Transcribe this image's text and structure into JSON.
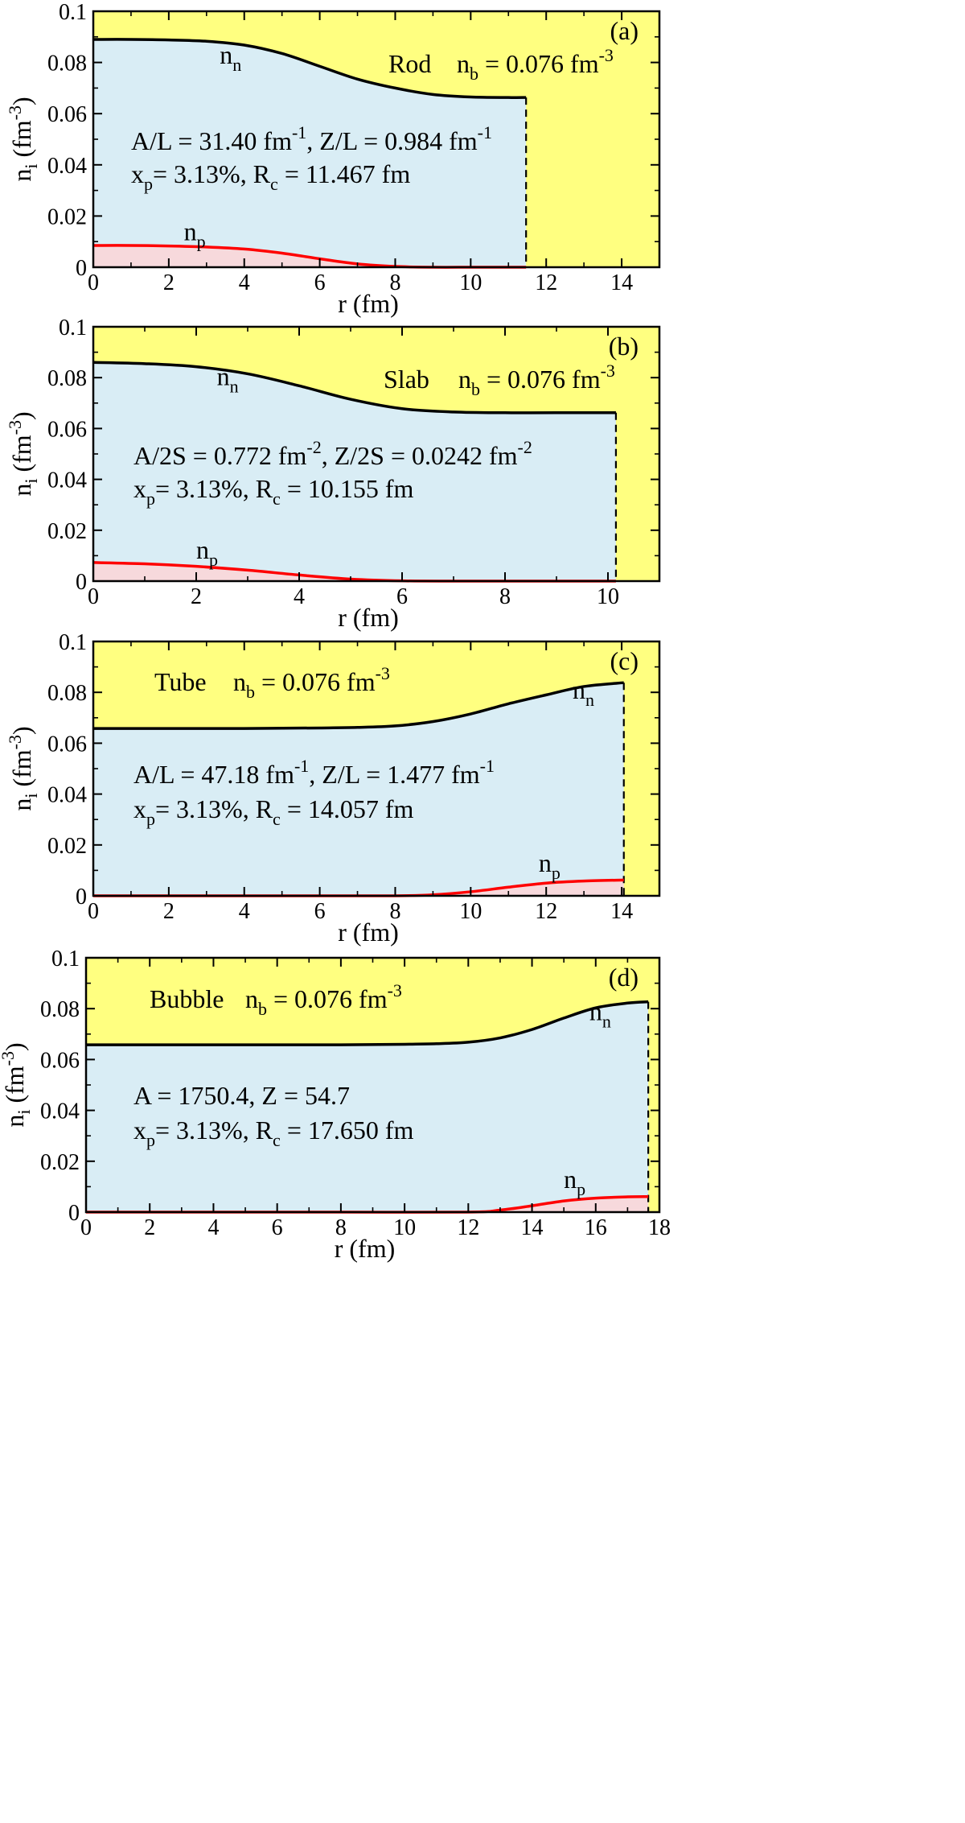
{
  "chart_data": [
    {
      "type": "area",
      "panel_label": "(a)",
      "shape": "Rod",
      "nb_text": "n",
      "nb_sub": "b",
      "nb_value": " = 0.076 fm",
      "nb_sup": "-3",
      "xlabel": "r (fm)",
      "ylabel_main": "n",
      "ylabel_sub": "i",
      "ylabel_unit": " (fm",
      "ylabel_sup": "-3",
      "ylabel_close": ")",
      "xlim": [
        0,
        15
      ],
      "ylim": [
        0,
        0.1
      ],
      "x_ticks": [
        "0",
        "2",
        "4",
        "6",
        "8",
        "10",
        "12",
        "14"
      ],
      "y_ticks": [
        "0",
        "0.02",
        "0.04",
        "0.06",
        "0.08",
        "0.1"
      ],
      "Rc": 11.467,
      "grid": false,
      "background_color": "#ffff80",
      "fill_colors": {
        "neutron": "#d9edf5",
        "proton": "#f7d9dc"
      },
      "line_colors": {
        "neutron": "#000000",
        "proton": "#ff0000"
      },
      "series": [
        {
          "name": "n",
          "sub": "n",
          "color": "#000000",
          "x": [
            0,
            1,
            2,
            3,
            4,
            5,
            6,
            7,
            8,
            9,
            10,
            11,
            11.467
          ],
          "values": [
            0.089,
            0.089,
            0.0888,
            0.0883,
            0.0868,
            0.0835,
            0.0785,
            0.0735,
            0.07,
            0.0675,
            0.0665,
            0.0663,
            0.0663
          ]
        },
        {
          "name": "n",
          "sub": "p",
          "color": "#ff0000",
          "x": [
            0,
            1,
            2,
            3,
            4,
            5,
            6,
            7,
            8,
            9,
            10,
            11,
            11.467
          ],
          "values": [
            0.0085,
            0.0085,
            0.0083,
            0.0079,
            0.0071,
            0.0055,
            0.0033,
            0.0013,
            0.0003,
            0.0,
            0.0,
            0.0,
            0.0
          ]
        }
      ],
      "n_label_pos": {
        "x": 3.35,
        "y": 0.0795
      },
      "p_label_pos": {
        "x": 2.4,
        "y": 0.0106
      },
      "annotations": [
        {
          "text": "A/L = 31.40 fm",
          "sup": "-1",
          "text2": ",  Z/L = 0.984 fm",
          "sup2": "-1"
        },
        {
          "text": "x",
          "sub": "p",
          "text2": "= 3.13%,  R",
          "sub2": "c",
          "text3": " = 11.467 fm"
        }
      ]
    },
    {
      "type": "area",
      "panel_label": "(b)",
      "shape": "Slab",
      "nb_text": "n",
      "nb_sub": "b",
      "nb_value": " = 0.076 fm",
      "nb_sup": "-3",
      "xlabel": "r (fm)",
      "ylabel_main": "n",
      "ylabel_sub": "i",
      "ylabel_unit": " (fm",
      "ylabel_sup": "-3",
      "ylabel_close": ")",
      "xlim": [
        0,
        11
      ],
      "ylim": [
        0,
        0.1
      ],
      "x_ticks": [
        "0",
        "2",
        "4",
        "6",
        "8",
        "10"
      ],
      "y_ticks": [
        "0",
        "0.02",
        "0.04",
        "0.06",
        "0.08",
        "0.1"
      ],
      "Rc": 10.155,
      "grid": false,
      "background_color": "#ffff80",
      "fill_colors": {
        "neutron": "#d9edf5",
        "proton": "#f7d9dc"
      },
      "line_colors": {
        "neutron": "#000000",
        "proton": "#ff0000"
      },
      "series": [
        {
          "name": "n",
          "sub": "n",
          "color": "#000000",
          "x": [
            0,
            1,
            2,
            3,
            4,
            5,
            6,
            7,
            8,
            9,
            10,
            10.155
          ],
          "values": [
            0.086,
            0.0855,
            0.0843,
            0.0815,
            0.0768,
            0.0715,
            0.0678,
            0.0665,
            0.0662,
            0.0662,
            0.0662,
            0.0662
          ]
        },
        {
          "name": "n",
          "sub": "p",
          "color": "#ff0000",
          "x": [
            0,
            1,
            2,
            3,
            4,
            5,
            6,
            7,
            8,
            9,
            10,
            10.155
          ],
          "values": [
            0.0073,
            0.0068,
            0.0058,
            0.0043,
            0.0024,
            0.0008,
            0.0001,
            0.0,
            0.0,
            0.0,
            0.0,
            0.0
          ]
        }
      ],
      "n_label_pos": {
        "x": 2.4,
        "y": 0.077
      },
      "p_label_pos": {
        "x": 2.0,
        "y": 0.0088
      },
      "annotations": [
        {
          "text": "A/2S = 0.772 fm",
          "sup": "-2",
          "text2": ",  Z/2S = 0.0242 fm",
          "sup2": "-2"
        },
        {
          "text": "x",
          "sub": "p",
          "text2": "= 3.13%,  R",
          "sub2": "c",
          "text3": " = 10.155 fm"
        }
      ]
    },
    {
      "type": "area",
      "panel_label": "(c)",
      "shape": "Tube",
      "nb_text": "n",
      "nb_sub": "b",
      "nb_value": " = 0.076 fm",
      "nb_sup": "-3",
      "xlabel": "r (fm)",
      "ylabel_main": "n",
      "ylabel_sub": "i",
      "ylabel_unit": " (fm",
      "ylabel_sup": "-3",
      "ylabel_close": ")",
      "xlim": [
        0,
        15
      ],
      "ylim": [
        0,
        0.1
      ],
      "x_ticks": [
        "0",
        "2",
        "4",
        "6",
        "8",
        "10",
        "12",
        "14"
      ],
      "y_ticks": [
        "0",
        "0.02",
        "0.04",
        "0.06",
        "0.08",
        "0.1"
      ],
      "Rc": 14.057,
      "grid": false,
      "background_color": "#ffff80",
      "fill_colors": {
        "neutron": "#d9edf5",
        "proton": "#f7d9dc"
      },
      "line_colors": {
        "neutron": "#000000",
        "proton": "#ff0000"
      },
      "series": [
        {
          "name": "n",
          "sub": "n",
          "color": "#000000",
          "x": [
            0,
            2,
            4,
            6,
            7,
            8,
            9,
            10,
            11,
            12,
            13,
            14.057
          ],
          "values": [
            0.0658,
            0.0658,
            0.0658,
            0.066,
            0.0662,
            0.0668,
            0.0685,
            0.0715,
            0.0755,
            0.079,
            0.0823,
            0.0838
          ]
        },
        {
          "name": "n",
          "sub": "p",
          "color": "#ff0000",
          "x": [
            0,
            2,
            4,
            6,
            8,
            9,
            10,
            11,
            12,
            13,
            14.057
          ],
          "values": [
            0.0,
            0.0,
            0.0,
            0.0,
            0.0,
            0.0004,
            0.0016,
            0.0034,
            0.005,
            0.0058,
            0.0062
          ]
        }
      ],
      "n_label_pos": {
        "x": 12.7,
        "y": 0.0775
      },
      "p_label_pos": {
        "x": 11.8,
        "y": 0.0095
      },
      "annotations": [
        {
          "text": "A/L = 47.18 fm",
          "sup": "-1",
          "text2": ",  Z/L = 1.477 fm",
          "sup2": "-1"
        },
        {
          "text": "x",
          "sub": "p",
          "text2": "= 3.13%,  R",
          "sub2": "c",
          "text3": " = 14.057 fm"
        }
      ]
    },
    {
      "type": "area",
      "panel_label": "(d)",
      "shape": "Bubble",
      "nb_text": "n",
      "nb_sub": "b",
      "nb_value": " = 0.076 fm",
      "nb_sup": "-3",
      "xlabel": "r (fm)",
      "ylabel_main": "n",
      "ylabel_sub": "i",
      "ylabel_unit": " (fm",
      "ylabel_sup": "-3",
      "ylabel_close": ")",
      "xlim": [
        0,
        18
      ],
      "ylim": [
        0,
        0.1
      ],
      "x_ticks": [
        "0",
        "2",
        "4",
        "6",
        "8",
        "10",
        "12",
        "14",
        "16",
        "18"
      ],
      "y_ticks": [
        "0",
        "0.02",
        "0.04",
        "0.06",
        "0.08",
        "0.1"
      ],
      "Rc": 17.65,
      "grid": false,
      "background_color": "#ffff80",
      "fill_colors": {
        "neutron": "#d9edf5",
        "proton": "#f7d9dc"
      },
      "line_colors": {
        "neutron": "#000000",
        "proton": "#ff0000"
      },
      "series": [
        {
          "name": "n",
          "sub": "n",
          "color": "#000000",
          "x": [
            0,
            4,
            8,
            10,
            11,
            12,
            13,
            14,
            15,
            16,
            17,
            17.65
          ],
          "values": [
            0.0658,
            0.0658,
            0.0658,
            0.066,
            0.0662,
            0.0668,
            0.0685,
            0.0718,
            0.0763,
            0.0803,
            0.0822,
            0.0827
          ]
        },
        {
          "name": "n",
          "sub": "p",
          "color": "#ff0000",
          "x": [
            0,
            4,
            8,
            12,
            13,
            14,
            15,
            16,
            17,
            17.65
          ],
          "values": [
            0.0,
            0.0,
            0.0,
            0.0,
            0.0008,
            0.0025,
            0.0044,
            0.0055,
            0.006,
            0.0061
          ]
        }
      ],
      "n_label_pos": {
        "x": 15.8,
        "y": 0.0755
      },
      "p_label_pos": {
        "x": 15.0,
        "y": 0.0095
      },
      "annotations": [
        {
          "text": "A = 1750.4,  Z = 54.7"
        },
        {
          "text": "x",
          "sub": "p",
          "text2": "= 3.13%,  R",
          "sub2": "c",
          "text3": " = 17.650 fm"
        }
      ]
    }
  ]
}
